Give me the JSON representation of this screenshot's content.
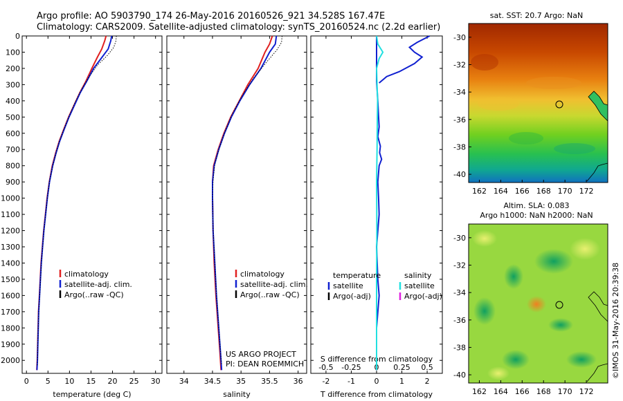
{
  "header": {
    "line1": "Argo profile: AO 5903790_174 26-May-2016 20160526_921 34.528S 167.47E",
    "line2": "Climatology: CARS2009. Satellite-adjusted climatology: synTS_20160524.nc (2.2d earlier)"
  },
  "credit": "©IMOS 31-May-2016 20:39:38",
  "colors": {
    "climatology": "#e02020",
    "satellite": "#1020d0",
    "argo": "#000000",
    "cyan": "#20e0e0",
    "magenta": "#e020e0"
  },
  "chart_data": [
    {
      "type": "line",
      "id": "temperature",
      "xlabel": "temperature (deg C)",
      "xlim": [
        -1,
        31.5
      ],
      "xticks": [
        "0",
        "5",
        "10",
        "15",
        "20",
        "25",
        "30"
      ],
      "ylim": [
        2080,
        0
      ],
      "yticks": [
        "0",
        "100",
        "200",
        "300",
        "400",
        "500",
        "600",
        "700",
        "800",
        "900",
        "1000",
        "1100",
        "1200",
        "1300",
        "1400",
        "1500",
        "1600",
        "1700",
        "1800",
        "1900",
        "2000"
      ],
      "legend": [
        "climatology",
        "satellite-adj. clim.",
        "Argo(..raw -QC)"
      ],
      "series": [
        {
          "name": "climatology",
          "color": "climatology",
          "points": [
            [
              18.5,
              0
            ],
            [
              18.2,
              30
            ],
            [
              17.5,
              80
            ],
            [
              16.5,
              130
            ],
            [
              15.2,
              200
            ],
            [
              13.8,
              280
            ],
            [
              12.4,
              350
            ],
            [
              11,
              430
            ],
            [
              9.8,
              500
            ],
            [
              8.6,
              580
            ],
            [
              7.6,
              650
            ],
            [
              6.8,
              720
            ],
            [
              6,
              800
            ],
            [
              5.3,
              900
            ],
            [
              4.8,
              1000
            ],
            [
              4.4,
              1100
            ],
            [
              4,
              1200
            ],
            [
              3.7,
              1300
            ],
            [
              3.4,
              1400
            ],
            [
              3.2,
              1500
            ],
            [
              3,
              1600
            ],
            [
              2.8,
              1700
            ],
            [
              2.7,
              1800
            ],
            [
              2.6,
              1900
            ],
            [
              2.5,
              2000
            ],
            [
              2.4,
              2060
            ]
          ]
        },
        {
          "name": "satellite-adj. clim.",
          "color": "satellite",
          "points": [
            [
              19.8,
              0
            ],
            [
              19.6,
              30
            ],
            [
              19,
              80
            ],
            [
              17.6,
              130
            ],
            [
              15.6,
              200
            ],
            [
              14,
              280
            ],
            [
              12.5,
              350
            ],
            [
              11.1,
              430
            ],
            [
              9.9,
              500
            ],
            [
              8.7,
              580
            ],
            [
              7.7,
              650
            ],
            [
              6.9,
              720
            ],
            [
              6.1,
              800
            ],
            [
              5.35,
              900
            ],
            [
              4.85,
              1000
            ],
            [
              4.45,
              1100
            ],
            [
              4.05,
              1200
            ],
            [
              3.75,
              1300
            ],
            [
              3.45,
              1400
            ],
            [
              3.25,
              1500
            ],
            [
              3.05,
              1600
            ],
            [
              2.85,
              1700
            ],
            [
              2.75,
              1800
            ],
            [
              2.65,
              1900
            ],
            [
              2.55,
              2000
            ],
            [
              2.45,
              2060
            ]
          ]
        },
        {
          "name": "Argo(..raw -QC)",
          "color": "argo",
          "dotted": true,
          "points": [
            [
              20.9,
              0
            ],
            [
              20.8,
              30
            ],
            [
              20.3,
              70
            ],
            [
              18.8,
              120
            ],
            [
              16.5,
              180
            ],
            [
              14.6,
              250
            ],
            [
              12.8,
              330
            ],
            [
              11.3,
              410
            ],
            [
              10,
              490
            ],
            [
              8.8,
              570
            ],
            [
              7.8,
              640
            ],
            [
              7,
              710
            ],
            [
              6.2,
              790
            ],
            [
              5.4,
              890
            ],
            [
              4.9,
              990
            ],
            [
              4.5,
              1090
            ],
            [
              4.1,
              1190
            ],
            [
              3.8,
              1290
            ],
            [
              3.5,
              1390
            ],
            [
              3.3,
              1490
            ],
            [
              3.1,
              1590
            ],
            [
              2.9,
              1690
            ],
            [
              2.75,
              1790
            ],
            [
              2.65,
              1890
            ],
            [
              2.55,
              1990
            ],
            [
              2.5,
              2030
            ]
          ]
        }
      ]
    },
    {
      "type": "line",
      "id": "salinity",
      "xlabel": "salinity",
      "xlim": [
        33.7,
        36.15
      ],
      "xticks": [
        "34",
        "34.5",
        "35",
        "35.5",
        "36"
      ],
      "ylim": [
        2080,
        0
      ],
      "legend": [
        "climatology",
        "satellite-adj. clim.",
        "Argo(..raw -QC)"
      ],
      "annotation": [
        "US ARGO PROJECT",
        "PI: DEAN ROEMMICH"
      ],
      "series": [
        {
          "name": "climatology",
          "color": "climatology",
          "points": [
            [
              35.55,
              0
            ],
            [
              35.5,
              50
            ],
            [
              35.42,
              100
            ],
            [
              35.3,
              200
            ],
            [
              35.12,
              300
            ],
            [
              34.97,
              400
            ],
            [
              34.82,
              500
            ],
            [
              34.7,
              600
            ],
            [
              34.6,
              700
            ],
            [
              34.52,
              800
            ],
            [
              34.5,
              900
            ],
            [
              34.5,
              1000
            ],
            [
              34.51,
              1200
            ],
            [
              34.53,
              1400
            ],
            [
              34.56,
              1600
            ],
            [
              34.6,
              1800
            ],
            [
              34.63,
              1950
            ],
            [
              34.65,
              2060
            ]
          ]
        },
        {
          "name": "satellite-adj. clim.",
          "color": "satellite",
          "points": [
            [
              35.62,
              0
            ],
            [
              35.6,
              50
            ],
            [
              35.5,
              100
            ],
            [
              35.35,
              200
            ],
            [
              35.15,
              300
            ],
            [
              34.98,
              400
            ],
            [
              34.83,
              500
            ],
            [
              34.71,
              600
            ],
            [
              34.61,
              700
            ],
            [
              34.53,
              800
            ],
            [
              34.5,
              900
            ],
            [
              34.5,
              1000
            ],
            [
              34.51,
              1200
            ],
            [
              34.54,
              1400
            ],
            [
              34.57,
              1600
            ],
            [
              34.61,
              1800
            ],
            [
              34.64,
              1950
            ],
            [
              34.66,
              2060
            ]
          ]
        },
        {
          "name": "Argo(..raw -QC)",
          "color": "argo",
          "dotted": true,
          "points": [
            [
              35.72,
              0
            ],
            [
              35.71,
              40
            ],
            [
              35.62,
              90
            ],
            [
              35.45,
              160
            ],
            [
              35.22,
              260
            ],
            [
              35.02,
              370
            ],
            [
              34.85,
              480
            ],
            [
              34.72,
              590
            ],
            [
              34.62,
              690
            ],
            [
              34.54,
              790
            ],
            [
              34.51,
              890
            ],
            [
              34.5,
              990
            ],
            [
              34.51,
              1190
            ],
            [
              34.54,
              1390
            ],
            [
              34.57,
              1590
            ],
            [
              34.61,
              1790
            ],
            [
              34.64,
              1940
            ],
            [
              34.66,
              2030
            ]
          ]
        }
      ]
    },
    {
      "type": "line",
      "id": "difference",
      "xlabel": "T difference from climatology",
      "xlabel_top": "S difference from climatology",
      "xlim": [
        -2.6,
        2.6
      ],
      "xticks": [
        "-2",
        "-1",
        "0",
        "1",
        "2"
      ],
      "xticks_top": [
        "-0.5",
        "-0.25",
        "0",
        "0.25",
        "0.5"
      ],
      "ylim": [
        2080,
        0
      ],
      "legend": [
        "temperature",
        "satellite",
        "Argo(-adj)",
        "salinity",
        "satellite",
        "Argo(-adj)"
      ],
      "series": [
        {
          "name": "satellite",
          "color": "satellite",
          "points": [
            [
              0,
              0
            ],
            [
              0,
              280
            ],
            [
              0.05,
              400
            ],
            [
              0.08,
              500
            ],
            [
              0.1,
              560
            ],
            [
              0.05,
              620
            ],
            [
              0.15,
              680
            ],
            [
              0.12,
              720
            ],
            [
              0.2,
              760
            ],
            [
              0.1,
              800
            ],
            [
              0.05,
              900
            ],
            [
              0.08,
              1000
            ],
            [
              0.1,
              1100
            ],
            [
              0,
              1300
            ],
            [
              0.05,
              1500
            ],
            [
              0.1,
              1600
            ],
            [
              0,
              1800
            ],
            [
              0,
              2060
            ]
          ]
        },
        {
          "name": "Argo(-adj)",
          "color": "satellite",
          "points": [
            [
              2.1,
              0
            ],
            [
              1.6,
              40
            ],
            [
              1.3,
              70
            ],
            [
              1.5,
              100
            ],
            [
              1.8,
              130
            ],
            [
              1.5,
              170
            ],
            [
              0.9,
              220
            ],
            [
              0.4,
              250
            ],
            [
              0.1,
              290
            ]
          ]
        },
        {
          "name": "satellite",
          "color": "cyan",
          "points": [
            [
              0,
              0
            ],
            [
              0.05,
              50
            ],
            [
              0.25,
              100
            ],
            [
              0.1,
              140
            ],
            [
              0,
              200
            ],
            [
              0.02,
              300
            ],
            [
              0.04,
              400
            ],
            [
              0.03,
              500
            ],
            [
              0.02,
              700
            ],
            [
              0,
              900
            ],
            [
              0.01,
              1200
            ],
            [
              0,
              1500
            ],
            [
              0,
              2060
            ]
          ]
        },
        {
          "name": "Argo(-adj)",
          "color": "magenta",
          "points": []
        }
      ]
    }
  ],
  "maps": [
    {
      "title": "sat. SST: 20.7 Argo: NaN",
      "xticks": [
        "162",
        "164",
        "166",
        "168",
        "170",
        "172"
      ],
      "yticks": [
        "-30",
        "-32",
        "-34",
        "-36",
        "-38",
        "-40"
      ]
    },
    {
      "title1": "Altim. SLA: 0.083",
      "title2": "Argo h1000: NaN h2000: NaN",
      "xticks": [
        "162",
        "164",
        "166",
        "168",
        "170",
        "172"
      ],
      "yticks": [
        "-30",
        "-32",
        "-34",
        "-36",
        "-38",
        "-40"
      ]
    }
  ]
}
